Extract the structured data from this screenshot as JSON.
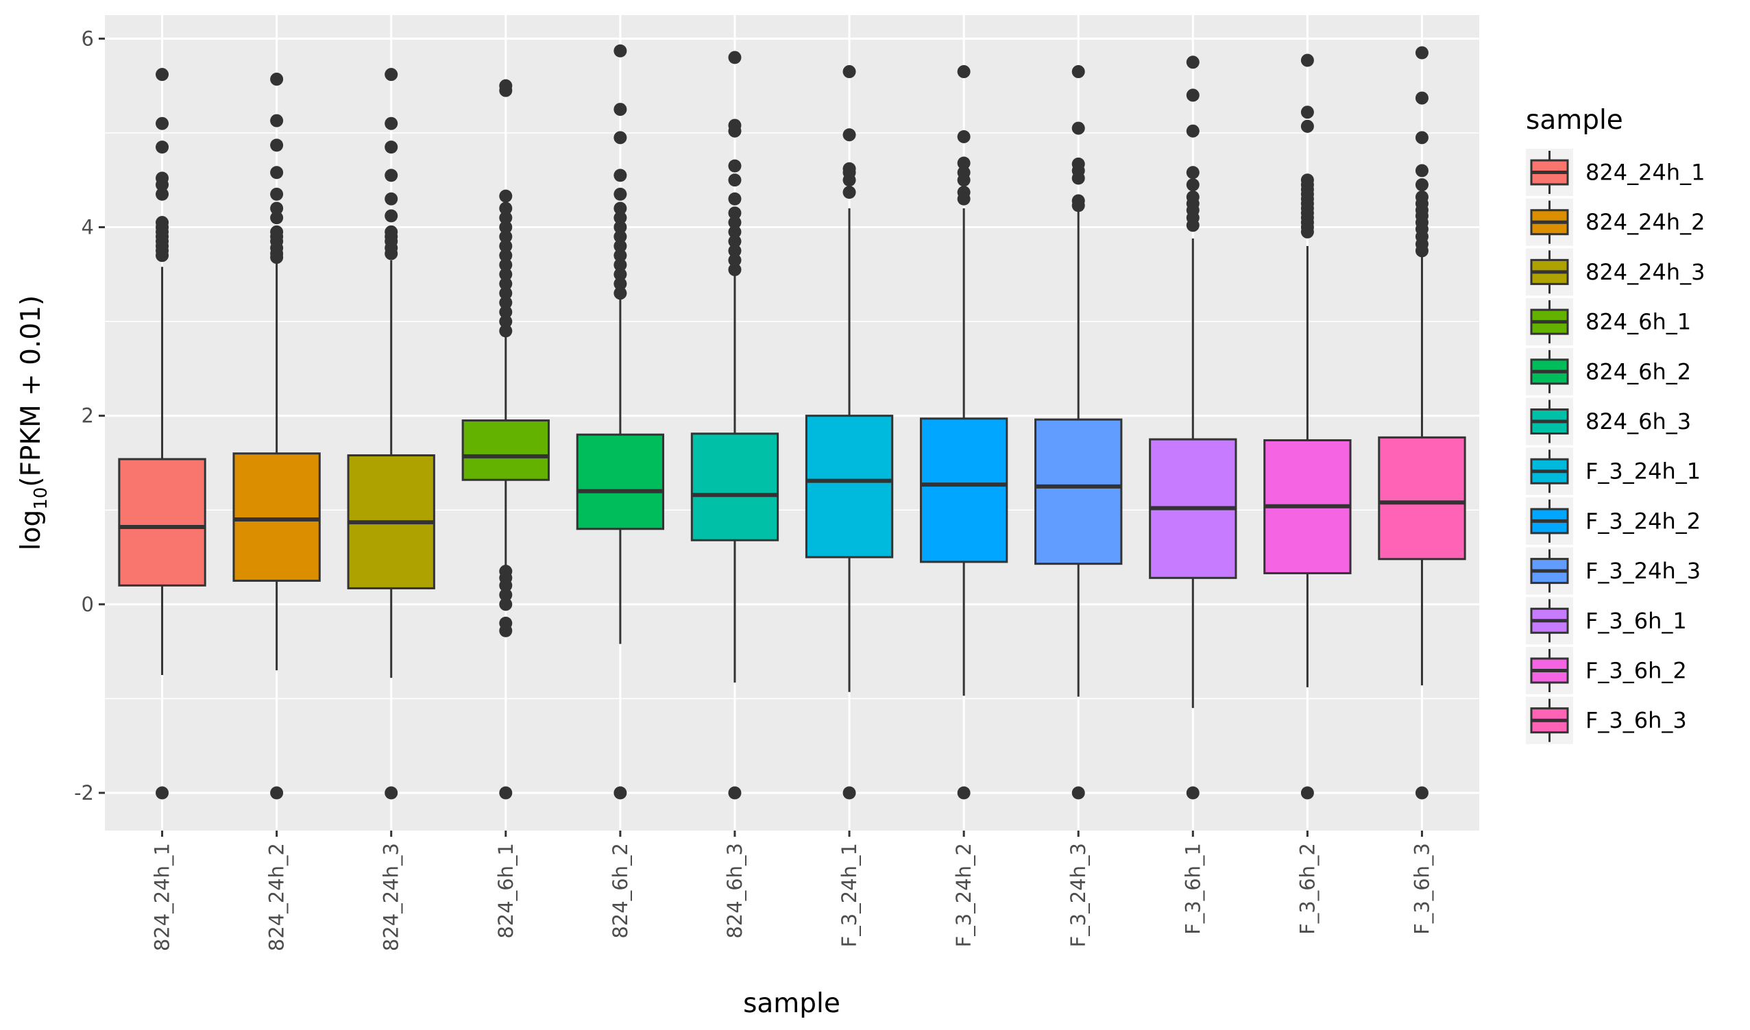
{
  "chart_data": {
    "type": "box",
    "xlabel": "sample",
    "ylabel_main": "log",
    "ylabel_sub": "10",
    "ylabel_rest": "(FPKM + 0.01)",
    "ylim": [
      -2.4,
      6.25
    ],
    "yticks": [
      -2,
      0,
      2,
      4,
      6
    ],
    "yticks_labels": [
      "-2",
      "0",
      "2",
      "4",
      "6"
    ],
    "grid": true,
    "legend_title": "sample",
    "legend_position": "right",
    "categories": [
      "824_24h_1",
      "824_24h_2",
      "824_24h_3",
      "824_6h_1",
      "824_6h_2",
      "824_6h_3",
      "F_3_24h_1",
      "F_3_24h_2",
      "F_3_24h_3",
      "F_3_6h_1",
      "F_3_6h_2",
      "F_3_6h_3"
    ],
    "colors": [
      "#F8766D",
      "#DB8E00",
      "#AEA200",
      "#64B200",
      "#00BD5C",
      "#00C1A7",
      "#00BADE",
      "#00A6FF",
      "#619CFF",
      "#C77CFF",
      "#F564E3",
      "#FF63B6"
    ],
    "boxes": [
      {
        "q1": 0.2,
        "median": 0.82,
        "q3": 1.54,
        "whisker_low": -0.75,
        "whisker_high": 3.58,
        "outliers": [
          -2,
          3.7,
          3.75,
          3.8,
          3.85,
          3.9,
          3.95,
          4.0,
          4.05,
          4.35,
          4.45,
          4.52,
          4.85,
          5.1,
          5.62
        ]
      },
      {
        "q1": 0.25,
        "median": 0.9,
        "q3": 1.6,
        "whisker_low": -0.7,
        "whisker_high": 3.62,
        "outliers": [
          -2,
          3.68,
          3.72,
          3.78,
          3.85,
          3.9,
          3.95,
          4.1,
          4.2,
          4.35,
          4.58,
          4.87,
          5.13,
          5.57
        ]
      },
      {
        "q1": 0.17,
        "median": 0.87,
        "q3": 1.58,
        "whisker_low": -0.78,
        "whisker_high": 3.65,
        "outliers": [
          -2,
          3.72,
          3.78,
          3.85,
          3.9,
          3.95,
          4.12,
          4.3,
          4.55,
          4.85,
          5.1,
          5.62
        ]
      },
      {
        "q1": 1.32,
        "median": 1.57,
        "q3": 1.95,
        "whisker_low": 0.38,
        "whisker_high": 2.88,
        "outliers": [
          -2,
          -0.28,
          -0.2,
          0.0,
          0.1,
          0.2,
          0.28,
          0.35,
          2.9,
          3.0,
          3.1,
          3.2,
          3.3,
          3.4,
          3.5,
          3.6,
          3.7,
          3.8,
          3.9,
          4.0,
          4.1,
          4.2,
          4.33,
          5.45,
          5.5
        ]
      },
      {
        "q1": 0.8,
        "median": 1.2,
        "q3": 1.8,
        "whisker_low": -0.42,
        "whisker_high": 3.28,
        "outliers": [
          -2,
          3.3,
          3.4,
          3.5,
          3.6,
          3.7,
          3.8,
          3.9,
          4.0,
          4.1,
          4.2,
          4.35,
          4.55,
          4.95,
          5.25,
          5.87
        ]
      },
      {
        "q1": 0.68,
        "median": 1.16,
        "q3": 1.81,
        "whisker_low": -0.83,
        "whisker_high": 3.5,
        "outliers": [
          -2,
          3.55,
          3.65,
          3.75,
          3.85,
          3.95,
          4.05,
          4.15,
          4.3,
          4.5,
          4.65,
          5.02,
          5.08,
          5.8
        ]
      },
      {
        "q1": 0.5,
        "median": 1.31,
        "q3": 2.0,
        "whisker_low": -0.93,
        "whisker_high": 4.2,
        "outliers": [
          -2,
          4.37,
          4.5,
          4.58,
          4.62,
          4.98,
          5.65
        ]
      },
      {
        "q1": 0.45,
        "median": 1.27,
        "q3": 1.97,
        "whisker_low": -0.97,
        "whisker_high": 4.2,
        "outliers": [
          -2,
          4.3,
          4.37,
          4.5,
          4.58,
          4.68,
          4.96,
          5.65
        ]
      },
      {
        "q1": 0.43,
        "median": 1.25,
        "q3": 1.96,
        "whisker_low": -0.98,
        "whisker_high": 4.2,
        "outliers": [
          -2,
          4.23,
          4.28,
          4.52,
          4.6,
          4.67,
          5.05,
          5.65
        ]
      },
      {
        "q1": 0.28,
        "median": 1.02,
        "q3": 1.75,
        "whisker_low": -1.1,
        "whisker_high": 3.88,
        "outliers": [
          -2,
          4.02,
          4.1,
          4.18,
          4.25,
          4.32,
          4.45,
          4.58,
          5.02,
          5.4,
          5.75
        ]
      },
      {
        "q1": 0.33,
        "median": 1.04,
        "q3": 1.74,
        "whisker_low": -0.88,
        "whisker_high": 3.8,
        "outliers": [
          -2,
          3.95,
          4.0,
          4.05,
          4.1,
          4.15,
          4.2,
          4.25,
          4.3,
          4.35,
          4.4,
          4.45,
          4.5,
          5.07,
          5.22,
          5.77
        ]
      },
      {
        "q1": 0.48,
        "median": 1.08,
        "q3": 1.77,
        "whisker_low": -0.86,
        "whisker_high": 3.72,
        "outliers": [
          -2,
          3.75,
          3.82,
          3.9,
          3.98,
          4.05,
          4.12,
          4.18,
          4.25,
          4.32,
          4.45,
          4.6,
          4.95,
          5.37,
          5.85
        ]
      }
    ]
  }
}
